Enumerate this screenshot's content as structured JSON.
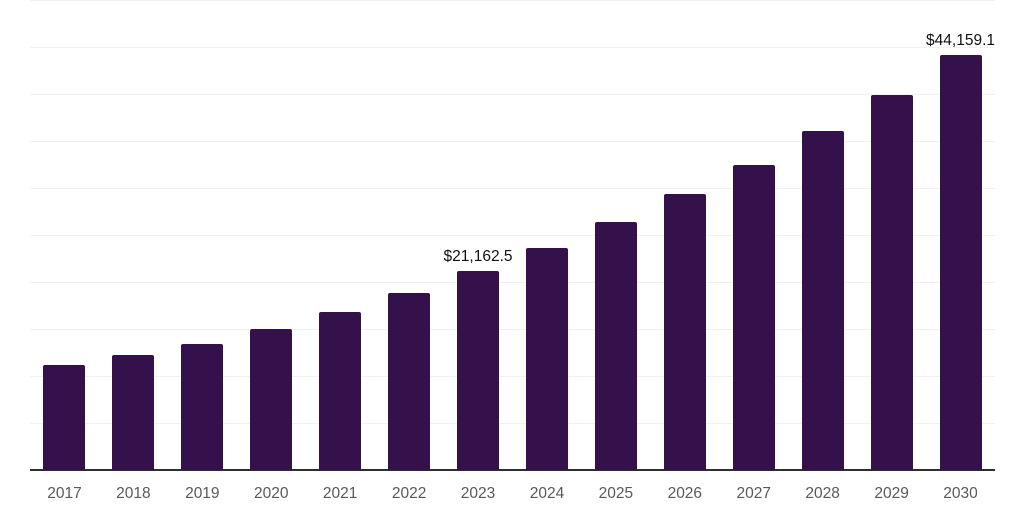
{
  "chart_data": {
    "type": "bar",
    "title": "",
    "xlabel": "",
    "ylabel": "",
    "categories": [
      "2017",
      "2018",
      "2019",
      "2020",
      "2021",
      "2022",
      "2023",
      "2024",
      "2025",
      "2026",
      "2027",
      "2028",
      "2029",
      "2030"
    ],
    "values": [
      11150,
      12250,
      13400,
      15000,
      16800,
      18830,
      21162.5,
      23650,
      26400,
      29350,
      32450,
      36050,
      39900,
      44159.1
    ],
    "data_labels": {
      "2023": "$21,162.5",
      "2030": "$44,159.1"
    },
    "ylim": [
      0,
      50000
    ],
    "gridline_step": 5000,
    "grid": "horizontal",
    "legend_position": "none",
    "colors": {
      "bar": "#34114a",
      "axis_line": "#2e2e2e",
      "gridline": "#f2f2f2",
      "tick_label": "#595959",
      "data_label": "#111111",
      "background": "#ffffff"
    }
  }
}
